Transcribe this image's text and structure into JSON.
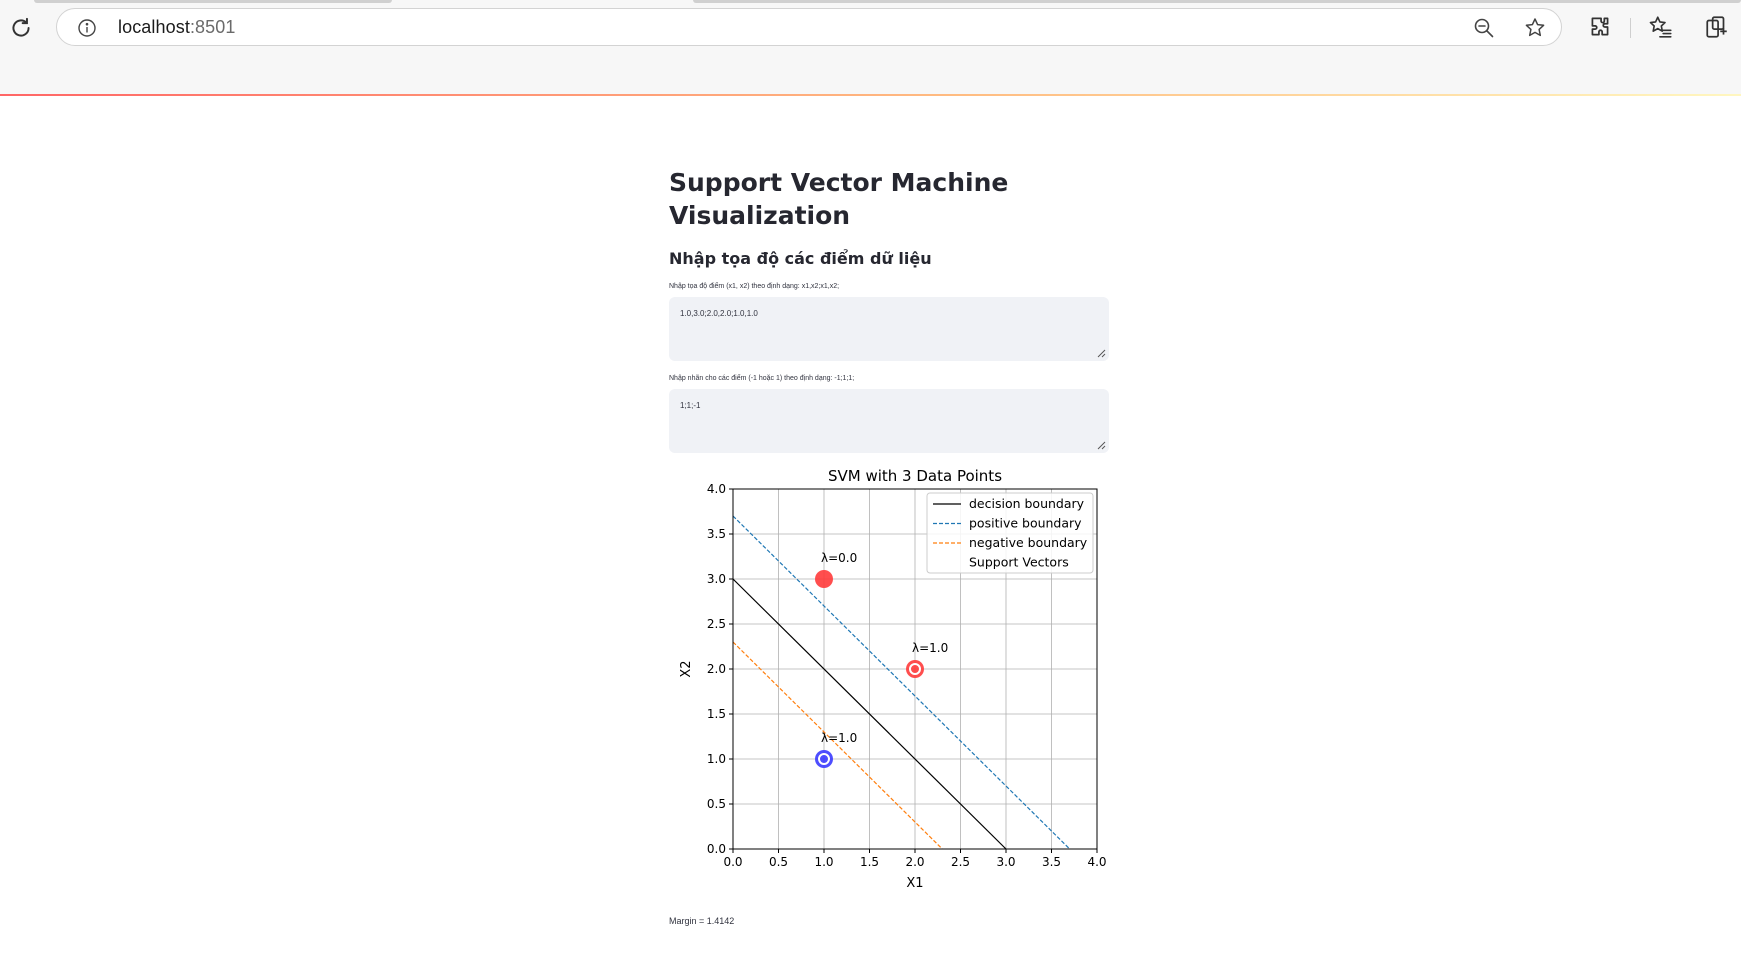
{
  "browser": {
    "url_host": "localhost",
    "url_port": ":8501"
  },
  "page": {
    "title": "Support Vector Machine Visualization",
    "subheader": "Nhập tọa độ các điểm dữ liệu",
    "points_field": {
      "label": "Nhập tọa độ điểm (x1, x2) theo định dạng: x1,x2;x1,x2;",
      "value": "1.0,3.0;2.0,2.0;1.0,1.0"
    },
    "labels_field": {
      "label": "Nhập nhãn cho các điểm (-1 hoặc 1) theo định dạng: -1;1;1;",
      "value": "1;1;-1"
    },
    "margin_text": "Margin = 1.4142"
  },
  "chart_data": {
    "type": "scatter",
    "title": "SVM with 3 Data Points",
    "xlabel": "X1",
    "ylabel": "X2",
    "xlim": [
      0.0,
      4.0
    ],
    "ylim": [
      0.0,
      4.0
    ],
    "xticks": [
      "0.0",
      "0.5",
      "1.0",
      "1.5",
      "2.0",
      "2.5",
      "3.0",
      "3.5",
      "4.0"
    ],
    "yticks": [
      "0.0",
      "0.5",
      "1.0",
      "1.5",
      "2.0",
      "2.5",
      "3.0",
      "3.5",
      "4.0"
    ],
    "grid": true,
    "legend_position": "top-right",
    "points": [
      {
        "x": 1.0,
        "y": 3.0,
        "label": 1,
        "lambda_label": "λ=0.0",
        "support_vector": false
      },
      {
        "x": 2.0,
        "y": 2.0,
        "label": 1,
        "lambda_label": "λ=1.0",
        "support_vector": true
      },
      {
        "x": 1.0,
        "y": 1.0,
        "label": -1,
        "lambda_label": "λ=1.0",
        "support_vector": true
      }
    ],
    "lines": [
      {
        "name": "decision boundary",
        "x": [
          0.0,
          3.0
        ],
        "y": [
          3.0,
          0.0
        ],
        "color": "#000000",
        "dash": "solid"
      },
      {
        "name": "positive boundary",
        "x": [
          0.0,
          3.7
        ],
        "y": [
          3.7,
          0.0
        ],
        "color": "#1f77b4",
        "dash": "dashed"
      },
      {
        "name": "negative boundary",
        "x": [
          0.0,
          2.3
        ],
        "y": [
          2.3,
          0.0
        ],
        "color": "#ff7f0e",
        "dash": "dashed"
      }
    ],
    "legend": [
      "decision boundary",
      "positive boundary",
      "negative boundary",
      "Support Vectors"
    ],
    "colors": {
      "positive": "#ff3b3b",
      "negative": "#3b3bff"
    }
  }
}
